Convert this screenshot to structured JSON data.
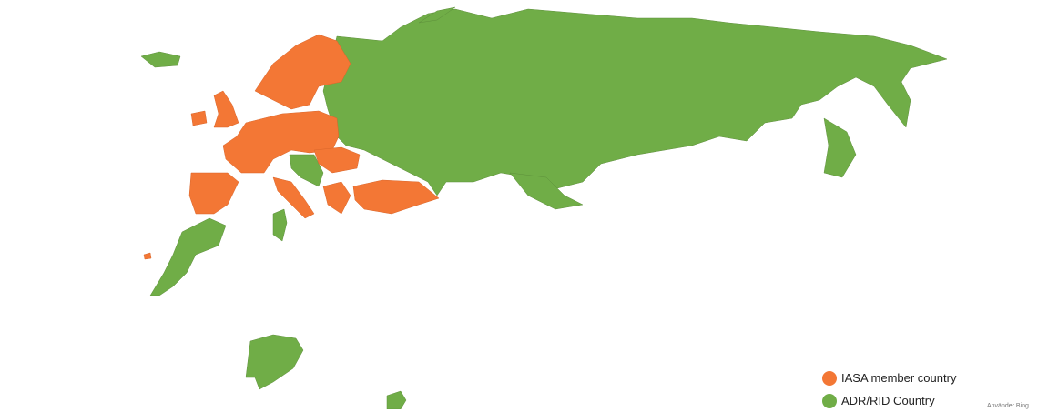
{
  "colors": {
    "iasa": "#f37735",
    "adr": "#70ad47"
  },
  "legend": [
    {
      "label": "IASA member country",
      "color": "#f37735"
    },
    {
      "label": "ADR/RID Country",
      "color": "#70ad47"
    }
  ],
  "attribution": "Använder Bing"
}
